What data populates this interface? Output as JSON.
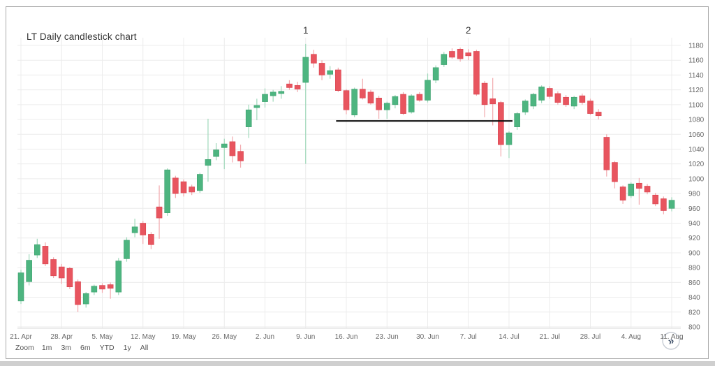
{
  "title": "LT Daily candlestick chart",
  "toolbar": {
    "zoom_label": "Zoom",
    "ranges": [
      "1m",
      "3m",
      "6m",
      "YTD",
      "1y",
      "All"
    ]
  },
  "scroll_button": {
    "glyph": "»"
  },
  "colors": {
    "up_body": "#4db580",
    "up_wick": "#9fd8ba",
    "down_body": "#e8555f",
    "down_wick": "#f2a9ae",
    "grid": "#ececec",
    "axis_line": "#d9d9d9",
    "axis_text": "#666666",
    "title_text": "#333333",
    "annotation_text": "#333333",
    "support_line": "#111111"
  },
  "chart_data": {
    "type": "candlestick",
    "title": "LT Daily candlestick chart",
    "xlabel": "",
    "ylabel": "",
    "grid": true,
    "legend": "none",
    "ylim": [
      800,
      1213
    ],
    "y_ticks": [
      800,
      820,
      840,
      860,
      880,
      900,
      920,
      940,
      960,
      980,
      1000,
      1020,
      1040,
      1060,
      1080,
      1100,
      1120,
      1140,
      1160,
      1180
    ],
    "x_tick_labels": [
      "21. Apr",
      "28. Apr",
      "5. May",
      "12. May",
      "19. May",
      "26. May",
      "2. Jun",
      "9. Jun",
      "16. Jun",
      "23. Jun",
      "30. Jun",
      "7. Jul",
      "14. Jul",
      "21. Jul",
      "28. Jul",
      "4. Aug",
      "11. Aug"
    ],
    "x_tick_indices": [
      0,
      5,
      10,
      15,
      20,
      25,
      30,
      35,
      40,
      45,
      50,
      55,
      60,
      65,
      70,
      75,
      80
    ],
    "annotations": [
      {
        "label": "1",
        "index": 35,
        "date": "2025-06-09"
      },
      {
        "label": "2",
        "index": 55,
        "date": "2025-07-07"
      }
    ],
    "support_line": {
      "price": 1078,
      "from_index": 39,
      "to_index": 60,
      "from_date": "2025-06-13",
      "to_date": "2025-07-14"
    },
    "series": [
      {
        "name": "LT",
        "columns": [
          "date",
          "open",
          "high",
          "low",
          "close"
        ],
        "ohlc": [
          [
            "2025-04-21",
            835,
            877,
            831,
            873
          ],
          [
            "2025-04-22",
            861,
            898,
            856,
            890
          ],
          [
            "2025-04-23",
            897,
            919,
            893,
            911
          ],
          [
            "2025-04-24",
            909,
            914,
            882,
            885
          ],
          [
            "2025-04-25",
            891,
            894,
            866,
            869
          ],
          [
            "2025-04-28",
            881,
            885,
            858,
            866
          ],
          [
            "2025-04-29",
            879,
            881,
            851,
            854
          ],
          [
            "2025-04-30",
            861,
            864,
            820,
            830
          ],
          [
            "2025-05-01",
            831,
            847,
            826,
            845
          ],
          [
            "2025-05-02",
            847,
            857,
            843,
            855
          ],
          [
            "2025-05-05",
            856,
            859,
            846,
            851
          ],
          [
            "2025-05-06",
            857,
            860,
            838,
            852
          ],
          [
            "2025-05-07",
            847,
            893,
            843,
            889
          ],
          [
            "2025-05-08",
            892,
            921,
            888,
            917
          ],
          [
            "2025-05-09",
            927,
            946,
            921,
            935
          ],
          [
            "2025-05-12",
            940,
            943,
            912,
            924
          ],
          [
            "2025-05-13",
            925,
            928,
            905,
            911
          ],
          [
            "2025-05-14",
            962,
            991,
            919,
            947
          ],
          [
            "2025-05-15",
            954,
            1014,
            950,
            1012
          ],
          [
            "2025-05-16",
            1001,
            1004,
            974,
            980
          ],
          [
            "2025-05-19",
            996,
            999,
            976,
            981
          ],
          [
            "2025-05-20",
            989,
            992,
            978,
            982
          ],
          [
            "2025-05-21",
            984,
            1008,
            981,
            1006
          ],
          [
            "2025-05-22",
            1018,
            1081,
            996,
            1026
          ],
          [
            "2025-05-23",
            1030,
            1048,
            1025,
            1039
          ],
          [
            "2025-05-26",
            1042,
            1054,
            1013,
            1047
          ],
          [
            "2025-05-27",
            1050,
            1057,
            1022,
            1031
          ],
          [
            "2025-05-28",
            1037,
            1046,
            1015,
            1024
          ],
          [
            "2025-05-29",
            1070,
            1100,
            1055,
            1093
          ],
          [
            "2025-05-30",
            1096,
            1108,
            1079,
            1099
          ],
          [
            "2025-06-02",
            1104,
            1122,
            1096,
            1114
          ],
          [
            "2025-06-03",
            1112,
            1120,
            1104,
            1117
          ],
          [
            "2025-06-04",
            1115,
            1125,
            1108,
            1118
          ],
          [
            "2025-06-05",
            1128,
            1133,
            1120,
            1123
          ],
          [
            "2025-06-06",
            1126,
            1131,
            1117,
            1121
          ],
          [
            "2025-06-09",
            1130,
            1182,
            1020,
            1164
          ],
          [
            "2025-06-10",
            1168,
            1174,
            1150,
            1156
          ],
          [
            "2025-06-11",
            1156,
            1160,
            1133,
            1140
          ],
          [
            "2025-06-12",
            1141,
            1152,
            1135,
            1146
          ],
          [
            "2025-06-13",
            1147,
            1150,
            1117,
            1119
          ],
          [
            "2025-06-16",
            1119,
            1121,
            1087,
            1093
          ],
          [
            "2025-06-17",
            1086,
            1123,
            1083,
            1121
          ],
          [
            "2025-06-18",
            1121,
            1135,
            1107,
            1109
          ],
          [
            "2025-06-19",
            1117,
            1120,
            1100,
            1102
          ],
          [
            "2025-06-20",
            1109,
            1112,
            1081,
            1093
          ],
          [
            "2025-06-23",
            1093,
            1104,
            1081,
            1102
          ],
          [
            "2025-06-24",
            1100,
            1113,
            1095,
            1111
          ],
          [
            "2025-06-25",
            1114,
            1117,
            1086,
            1088
          ],
          [
            "2025-06-26",
            1090,
            1114,
            1088,
            1112
          ],
          [
            "2025-06-27",
            1114,
            1117,
            1104,
            1106
          ],
          [
            "2025-06-30",
            1106,
            1142,
            1103,
            1133
          ],
          [
            "2025-07-01",
            1133,
            1153,
            1129,
            1150
          ],
          [
            "2025-07-02",
            1154,
            1171,
            1151,
            1168
          ],
          [
            "2025-07-03",
            1172,
            1176,
            1162,
            1164
          ],
          [
            "2025-07-04",
            1175,
            1177,
            1158,
            1162
          ],
          [
            "2025-07-07",
            1170,
            1175,
            1160,
            1166
          ],
          [
            "2025-07-08",
            1172,
            1174,
            1112,
            1114
          ],
          [
            "2025-07-09",
            1129,
            1132,
            1083,
            1100
          ],
          [
            "2025-07-10",
            1108,
            1136,
            1072,
            1101
          ],
          [
            "2025-07-11",
            1103,
            1105,
            1030,
            1046
          ],
          [
            "2025-07-14",
            1046,
            1064,
            1028,
            1062
          ],
          [
            "2025-07-15",
            1070,
            1090,
            1066,
            1088
          ],
          [
            "2025-07-16",
            1090,
            1107,
            1086,
            1105
          ],
          [
            "2025-07-17",
            1098,
            1116,
            1094,
            1114
          ],
          [
            "2025-07-18",
            1106,
            1126,
            1102,
            1124
          ],
          [
            "2025-07-21",
            1122,
            1125,
            1108,
            1111
          ],
          [
            "2025-07-22",
            1115,
            1118,
            1100,
            1103
          ],
          [
            "2025-07-23",
            1110,
            1113,
            1097,
            1100
          ],
          [
            "2025-07-24",
            1098,
            1112,
            1094,
            1110
          ],
          [
            "2025-07-25",
            1112,
            1115,
            1100,
            1103
          ],
          [
            "2025-07-28",
            1105,
            1108,
            1086,
            1088
          ],
          [
            "2025-07-29",
            1090,
            1094,
            1080,
            1085
          ],
          [
            "2025-07-30",
            1056,
            1060,
            1003,
            1012
          ],
          [
            "2025-07-31",
            1022,
            1024,
            987,
            996
          ],
          [
            "2025-08-01",
            989,
            991,
            966,
            971
          ],
          [
            "2025-08-04",
            977,
            995,
            974,
            993
          ],
          [
            "2025-08-05",
            994,
            1001,
            965,
            987
          ],
          [
            "2025-08-06",
            990,
            993,
            979,
            982
          ],
          [
            "2025-08-07",
            978,
            981,
            963,
            966
          ],
          [
            "2025-08-08",
            973,
            976,
            952,
            957
          ],
          [
            "2025-08-11",
            960,
            975,
            956,
            971
          ]
        ]
      }
    ]
  }
}
